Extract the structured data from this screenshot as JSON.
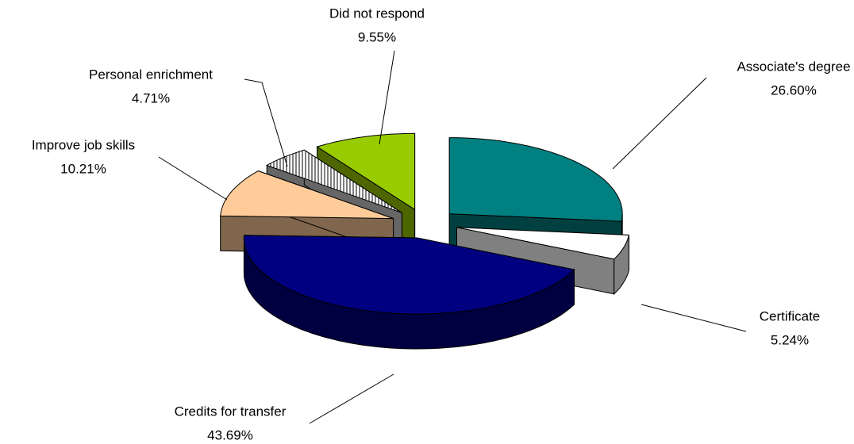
{
  "chart_data": {
    "type": "pie3d",
    "categories": [
      "Associate's degree",
      "Certificate",
      "Credits for transfer",
      "Improve job skills",
      "Personal enrichment",
      "Did not respond"
    ],
    "values": [
      26.6,
      5.24,
      43.69,
      10.21,
      4.71,
      9.55
    ],
    "value_labels": [
      "26.60%",
      "5.24%",
      "43.69%",
      "10.21%",
      "4.71%",
      "9.55%"
    ],
    "colors": [
      "#008080",
      "#ffffff",
      "#000080",
      "#ffcc99",
      "#ffffff",
      "#99cc00"
    ]
  }
}
